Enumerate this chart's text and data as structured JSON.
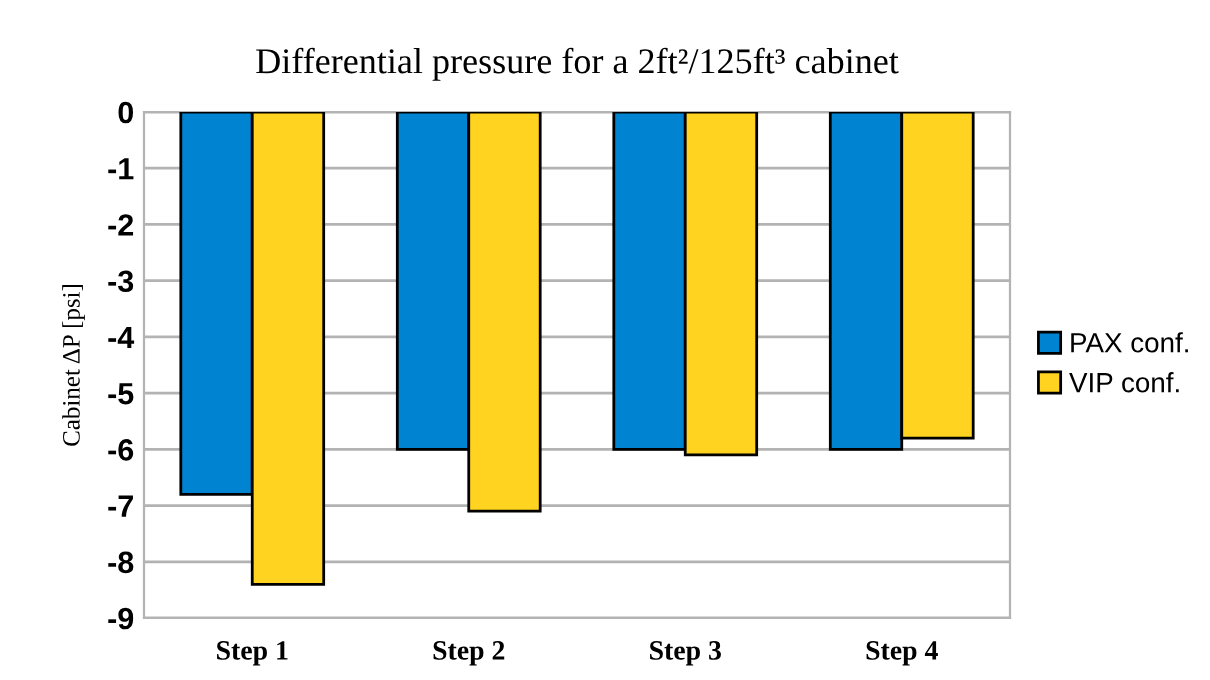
{
  "chart_data": {
    "type": "bar",
    "title": "Differential pressure for a 2ft²/125ft³ cabinet",
    "ylabel": "Cabinet ΔP [psi]",
    "categories": [
      "Step 1",
      "Step 2",
      "Step 3",
      "Step 4"
    ],
    "series": [
      {
        "name": "PAX conf.",
        "color": "#0084d1",
        "values": [
          -6.8,
          -6.0,
          -6.0,
          -6.0
        ]
      },
      {
        "name": "VIP conf.",
        "color": "#ffd320",
        "values": [
          -8.4,
          -7.1,
          -6.1,
          -5.8
        ]
      }
    ],
    "ylim": [
      -9,
      0
    ],
    "yticks": [
      -9,
      -8,
      -7,
      -6,
      -5,
      -4,
      -3,
      -2,
      -1,
      0
    ],
    "grid": "y",
    "legend": "right"
  }
}
